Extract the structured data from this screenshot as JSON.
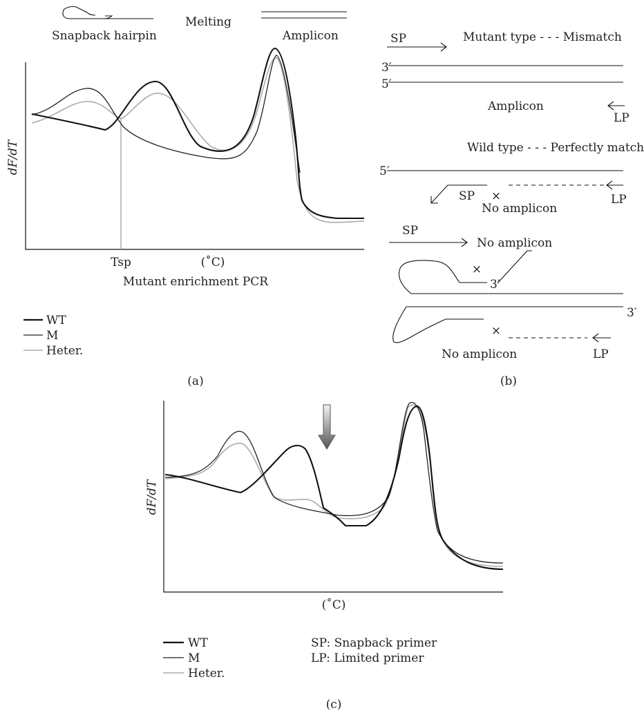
{
  "panel_a": {
    "top_left_label": "Snapback hairpin",
    "top_mid_label": "Melting",
    "top_right_label": "Amplicon",
    "y_axis_label": "dF/dT",
    "x_tick_tsp": "Tsp",
    "x_unit": "(˚C)",
    "caption": "Mutant enrichment PCR",
    "legend": [
      {
        "label": "WT",
        "color": "#111111"
      },
      {
        "label": "M",
        "color": "#222222"
      },
      {
        "label": "Heter.",
        "color": "#aaaaaa"
      }
    ],
    "panel_letter": "(a)"
  },
  "panel_b": {
    "sp_label_1": "SP",
    "mutant_text": "Mutant type - - - Mismatch",
    "strand_3": "3′",
    "strand_5": "5′",
    "amplicon_text": "Amplicon",
    "lp_label_1": "LP",
    "wild_text": "Wild type - - - Perfectly match",
    "strand_5b": "5′",
    "sp_label_2": "SP",
    "no_amplicon_1": "No amplicon",
    "lp_label_2": "LP",
    "sp_label_3": "SP",
    "no_amplicon_2": "No amplicon",
    "strand_3c": "3′",
    "strand_3d": "3′",
    "no_amplicon_3": "No amplicon",
    "lp_label_3": "LP",
    "cross": "×",
    "panel_letter": "(b)"
  },
  "panel_c": {
    "y_axis_label": "dF/dT",
    "x_unit": "(˚C)",
    "legend": [
      {
        "label": "WT",
        "color": "#111111"
      },
      {
        "label": "M",
        "color": "#222222"
      },
      {
        "label": "Heter.",
        "color": "#aaaaaa"
      }
    ],
    "abbrev_sp": "SP: Snapback primer",
    "abbrev_lp": "LP: Limited primer",
    "panel_letter": "(c)",
    "arrow_color_top": "#f2f2f2",
    "arrow_color_bottom": "#555555"
  }
}
